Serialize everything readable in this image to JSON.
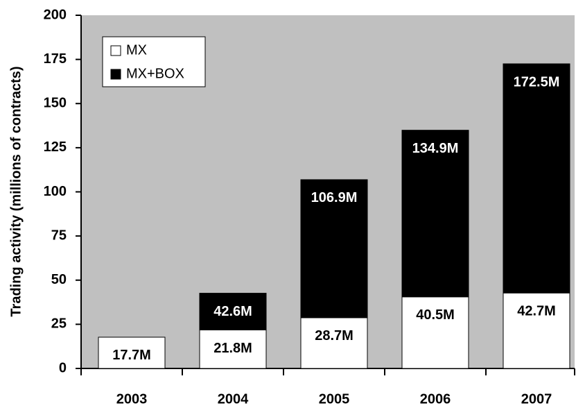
{
  "chart_data": {
    "type": "bar",
    "y_label": "Trading activity (millions of contracts)",
    "categories": [
      "2003",
      "2004",
      "2005",
      "2006",
      "2007"
    ],
    "series": [
      {
        "name": "MX+BOX",
        "color": "#000000",
        "values": [
          null,
          42.6,
          106.9,
          134.9,
          172.5
        ],
        "value_labels": [
          null,
          "42.6M",
          "106.9M",
          "134.9M",
          "172.5M"
        ]
      },
      {
        "name": "MX",
        "color": "#ffffff",
        "values": [
          17.7,
          21.8,
          28.7,
          40.5,
          42.7
        ],
        "value_labels": [
          "17.7M",
          "21.8M",
          "28.7M",
          "40.5M",
          "42.7M"
        ]
      }
    ],
    "ylim": [
      0,
      200
    ],
    "yticks": [
      0,
      25,
      50,
      75,
      100,
      125,
      150,
      175,
      200
    ],
    "plot_background": "#c0c0c0"
  }
}
